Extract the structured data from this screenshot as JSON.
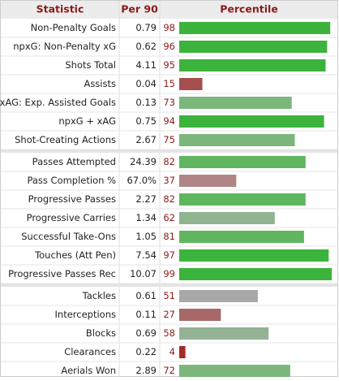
{
  "header": {
    "columns": [
      "Statistic",
      "Per 90",
      "Percentile"
    ]
  },
  "percentile_range": [
    0,
    100
  ],
  "groups": [
    {
      "rows": [
        {
          "statistic": "Non-Penalty Goals",
          "per90": 0.79,
          "percentile": 98,
          "color": "#3cb33c"
        },
        {
          "statistic": "npxG: Non-Penalty xG",
          "per90": 0.62,
          "percentile": 96,
          "color": "#3cb33c"
        },
        {
          "statistic": "Shots Total",
          "per90": 4.11,
          "percentile": 95,
          "color": "#3cb33c"
        },
        {
          "statistic": "Assists",
          "per90": 0.04,
          "percentile": 15,
          "color": "#a54e4e"
        },
        {
          "statistic": "xAG: Exp. Assisted Goals",
          "per90": 0.13,
          "percentile": 73,
          "color": "#7bb77b"
        },
        {
          "statistic": "npxG + xAG",
          "per90": 0.75,
          "percentile": 94,
          "color": "#3cb33c"
        },
        {
          "statistic": "Shot-Creating Actions",
          "per90": 2.67,
          "percentile": 75,
          "color": "#7bb77b"
        }
      ]
    },
    {
      "rows": [
        {
          "statistic": "Passes Attempted",
          "per90": 24.39,
          "percentile": 82,
          "color": "#5fb65f"
        },
        {
          "statistic": "Pass Completion %",
          "per90": {
            "value": 67.0,
            "label": "67.0%"
          },
          "percentile": 37,
          "color": "#b08585"
        },
        {
          "statistic": "Progressive Passes",
          "per90": 2.27,
          "percentile": 82,
          "color": "#5fb65f"
        },
        {
          "statistic": "Progressive Carries",
          "per90": 1.34,
          "percentile": 62,
          "color": "#8fb48f"
        },
        {
          "statistic": "Successful Take-Ons",
          "per90": 1.05,
          "percentile": 81,
          "color": "#5fb65f"
        },
        {
          "statistic": "Touches (Att Pen)",
          "per90": 7.54,
          "percentile": 97,
          "color": "#3cb33c"
        },
        {
          "statistic": "Progressive Passes Rec",
          "per90": 10.07,
          "percentile": 99,
          "color": "#3cb33c"
        }
      ]
    },
    {
      "rows": [
        {
          "statistic": "Tackles",
          "per90": 0.61,
          "percentile": 51,
          "color": "#a8a8a8"
        },
        {
          "statistic": "Interceptions",
          "per90": 0.11,
          "percentile": 27,
          "color": "#a86868"
        },
        {
          "statistic": "Blocks",
          "per90": 0.69,
          "percentile": 58,
          "color": "#94b294"
        },
        {
          "statistic": "Clearances",
          "per90": 0.22,
          "percentile": 4,
          "color": "#a52a2a"
        },
        {
          "statistic": "Aerials Won",
          "per90": 2.89,
          "percentile": 72,
          "color": "#7bb77b"
        }
      ]
    }
  ]
}
